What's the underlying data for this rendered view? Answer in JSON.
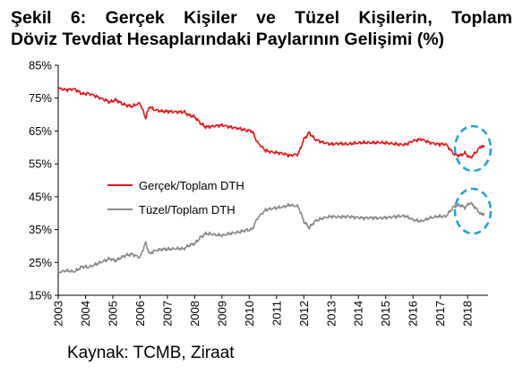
{
  "title_line1": "Şekil 6: Gerçek Kişiler ve Tüzel Kişilerin, Toplam",
  "title_line2": "Döviz Tevdiat Hesaplarındaki Paylarının Gelişimi (%)",
  "source": "Kaynak: TCMB, Ziraat",
  "chart_data": {
    "type": "line",
    "title": "Şekil 6: Gerçek Kişiler ve Tüzel Kişilerin, Toplam Döviz Tevdiat Hesaplarındaki Paylarının Gelişimi (%)",
    "xlabel": "",
    "ylabel": "",
    "xlim": [
      2003,
      2018.75
    ],
    "ylim": [
      15,
      85
    ],
    "y_ticks": [
      "15%",
      "25%",
      "35%",
      "45%",
      "55%",
      "65%",
      "75%",
      "85%"
    ],
    "x_ticks": [
      "2003",
      "2004",
      "2005",
      "2006",
      "2007",
      "2008",
      "2009",
      "2010",
      "2011",
      "2012",
      "2013",
      "2014",
      "2015",
      "2016",
      "2017",
      "2018"
    ],
    "grid": false,
    "legend_position": "center-left",
    "series": [
      {
        "name": "Gerçek/Toplam DTH",
        "color": "#e4161b",
        "x": [
          2003.0,
          2003.3,
          2003.6,
          2003.9,
          2004.1,
          2004.4,
          2004.7,
          2004.9,
          2005.1,
          2005.3,
          2005.5,
          2005.7,
          2006.0,
          2006.2,
          2006.35,
          2006.5,
          2006.8,
          2007.0,
          2007.3,
          2007.6,
          2007.8,
          2008.0,
          2008.2,
          2008.4,
          2008.7,
          2009.0,
          2009.3,
          2009.6,
          2009.9,
          2010.1,
          2010.3,
          2010.6,
          2010.9,
          2011.2,
          2011.5,
          2011.8,
          2012.0,
          2012.2,
          2012.4,
          2012.7,
          2013.0,
          2013.3,
          2013.6,
          2013.9,
          2014.2,
          2014.5,
          2014.8,
          2015.1,
          2015.4,
          2015.7,
          2016.0,
          2016.3,
          2016.6,
          2016.9,
          2017.2,
          2017.5,
          2017.7,
          2017.9,
          2018.1,
          2018.3,
          2018.5,
          2018.6
        ],
        "values": [
          78,
          77.5,
          77.8,
          76.2,
          76.5,
          75.5,
          74.5,
          73.8,
          74.5,
          73.5,
          72.8,
          72.5,
          73.5,
          69,
          72.5,
          71.5,
          71,
          71,
          70.8,
          70.8,
          69.8,
          69.3,
          67.5,
          66.2,
          66.5,
          66.8,
          66.2,
          65.8,
          65.2,
          65,
          61.5,
          59,
          58.5,
          58.2,
          57.5,
          58,
          62.5,
          64.5,
          62.5,
          61.5,
          61,
          61.2,
          61,
          61.3,
          61.5,
          61.4,
          61.5,
          61.3,
          61,
          60.8,
          62,
          62.5,
          61.5,
          61,
          61,
          58,
          57.5,
          58.3,
          56.8,
          58.5,
          60.5,
          60
        ]
      },
      {
        "name": "Tüzel/Toplam DTH",
        "color": "#888888",
        "x": [
          2003.0,
          2003.3,
          2003.6,
          2003.9,
          2004.1,
          2004.4,
          2004.7,
          2004.9,
          2005.1,
          2005.3,
          2005.5,
          2005.7,
          2006.0,
          2006.2,
          2006.35,
          2006.5,
          2006.8,
          2007.0,
          2007.3,
          2007.6,
          2007.8,
          2008.0,
          2008.2,
          2008.4,
          2008.7,
          2009.0,
          2009.3,
          2009.6,
          2009.9,
          2010.1,
          2010.3,
          2010.6,
          2010.9,
          2011.2,
          2011.5,
          2011.8,
          2012.0,
          2012.2,
          2012.4,
          2012.7,
          2013.0,
          2013.3,
          2013.6,
          2013.9,
          2014.2,
          2014.5,
          2014.8,
          2015.1,
          2015.4,
          2015.7,
          2016.0,
          2016.3,
          2016.6,
          2016.9,
          2017.2,
          2017.5,
          2017.7,
          2017.9,
          2018.1,
          2018.3,
          2018.5,
          2018.6
        ],
        "values": [
          22,
          22.5,
          22.2,
          23.8,
          23.5,
          24.5,
          25.5,
          26.2,
          25.5,
          26.5,
          27.2,
          27.5,
          26.5,
          31,
          27.5,
          28.5,
          29,
          29,
          29.2,
          29.2,
          30.2,
          30.7,
          32.5,
          33.8,
          33.5,
          33.2,
          33.8,
          34.2,
          34.8,
          35,
          38.5,
          41,
          41.5,
          41.8,
          42.5,
          42,
          37.5,
          35.5,
          37.5,
          38.5,
          39,
          38.8,
          39,
          38.7,
          38.5,
          38.6,
          38.5,
          38.7,
          39,
          39.2,
          38,
          37.5,
          38.5,
          39,
          39,
          42,
          42.5,
          41.7,
          43.2,
          41.5,
          39.5,
          40
        ]
      }
    ]
  }
}
